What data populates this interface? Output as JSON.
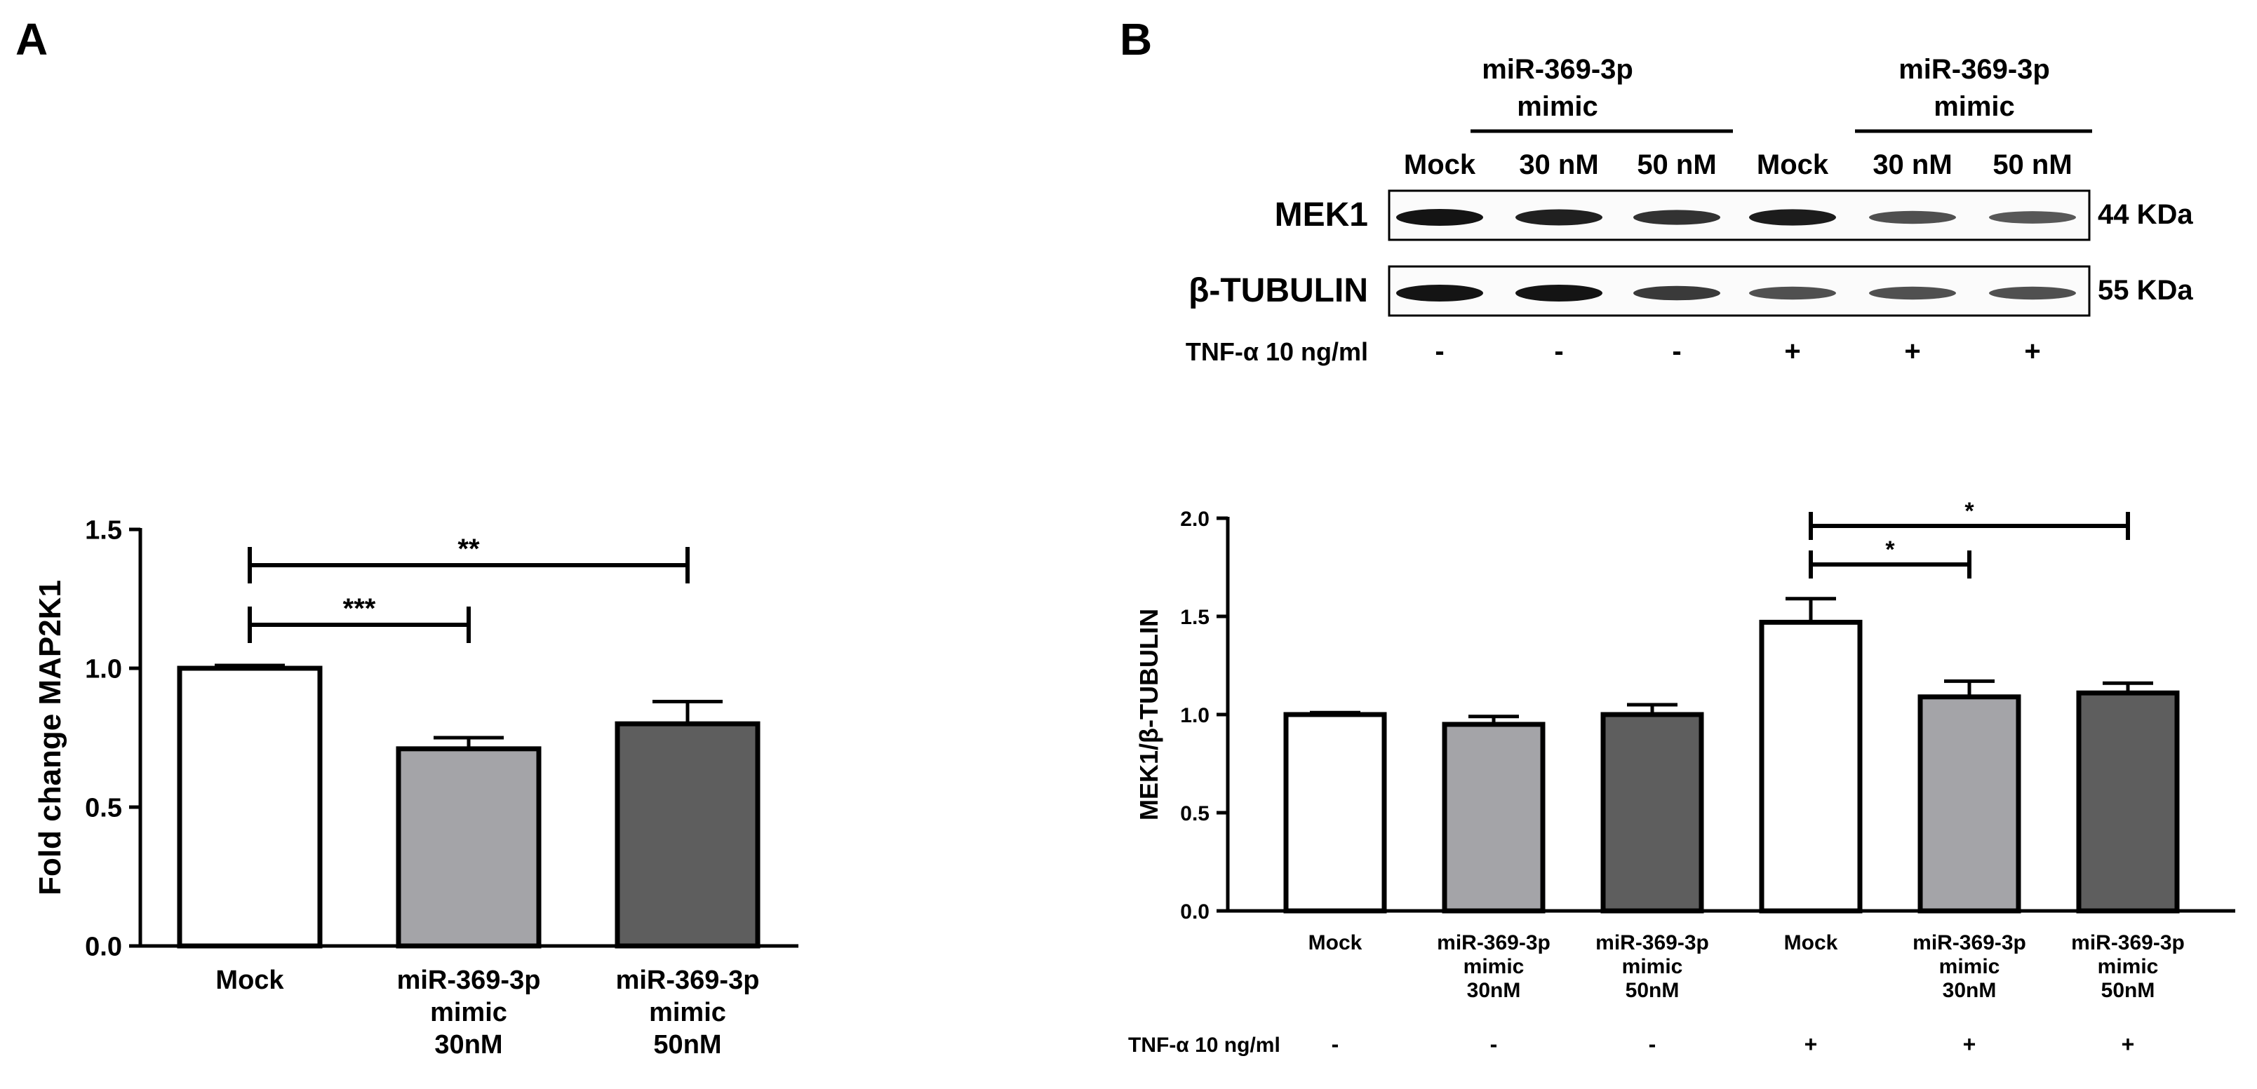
{
  "panels": {
    "a_label": "A",
    "b_label": "B"
  },
  "blot": {
    "group_label_line1": "miR-369-3p",
    "group_label_line2": "mimic",
    "lanes": [
      "Mock",
      "30 nM",
      "50 nM",
      "Mock",
      "30 nM",
      "50 nM"
    ],
    "rows": [
      {
        "label": "MEK1",
        "size": "44 KDa",
        "intensity": [
          1.0,
          0.92,
          0.8,
          0.95,
          0.6,
          0.55
        ]
      },
      {
        "label": "β-TUBULIN",
        "size": "55 KDa",
        "intensity": [
          1.0,
          1.0,
          0.75,
          0.6,
          0.6,
          0.6
        ]
      }
    ],
    "tnf_label": "TNF-α 10 ng/ml",
    "tnf_signs": [
      "-",
      "-",
      "-",
      "+",
      "+",
      "+"
    ]
  },
  "chart_data": [
    {
      "type": "bar",
      "panel": "A",
      "ylabel": "Fold change MAP2K1",
      "xlabel": "",
      "ylim": [
        0,
        1.5
      ],
      "yticks": [
        "0.0",
        "0.5",
        "1.0",
        "1.5"
      ],
      "ytick_values": [
        0,
        0.5,
        1.0,
        1.5
      ],
      "categories": [
        [
          "Mock"
        ],
        [
          "miR-369-3p",
          "mimic",
          "30nM"
        ],
        [
          "miR-369-3p",
          "mimic",
          "50nM"
        ]
      ],
      "values": [
        1.0,
        0.71,
        0.8
      ],
      "errors": [
        0.01,
        0.04,
        0.08
      ],
      "colors": [
        "#ffffff",
        "#a4a4a8",
        "#5e5e5e"
      ],
      "significance": [
        {
          "from": 0,
          "to": 1,
          "label": "***"
        },
        {
          "from": 0,
          "to": 2,
          "label": "**"
        }
      ]
    },
    {
      "type": "bar",
      "panel": "B",
      "ylabel": "MEK1/β-TUBULIN",
      "xlabel": "",
      "ylim": [
        0,
        2.0
      ],
      "yticks": [
        "0.0",
        "0.5",
        "1.0",
        "1.5",
        "2.0"
      ],
      "ytick_values": [
        0,
        0.5,
        1.0,
        1.5,
        2.0
      ],
      "categories": [
        [
          "Mock"
        ],
        [
          "miR-369-3p",
          "mimic",
          "30nM"
        ],
        [
          "miR-369-3p",
          "mimic",
          "50nM"
        ],
        [
          "Mock"
        ],
        [
          "miR-369-3p",
          "mimic",
          "30nM"
        ],
        [
          "miR-369-3p",
          "mimic",
          "50nM"
        ]
      ],
      "values": [
        1.0,
        0.95,
        1.0,
        1.47,
        1.09,
        1.11
      ],
      "errors": [
        0.01,
        0.04,
        0.05,
        0.12,
        0.08,
        0.05
      ],
      "colors": [
        "#ffffff",
        "#a4a4a8",
        "#5e5e5e",
        "#ffffff",
        "#a4a4a8",
        "#5e5e5e"
      ],
      "significance": [
        {
          "from": 3,
          "to": 4,
          "label": "*"
        },
        {
          "from": 3,
          "to": 5,
          "label": "*"
        }
      ],
      "tnf_label": "TNF-α 10 ng/ml",
      "tnf_signs": [
        "-",
        "-",
        "-",
        "+",
        "+",
        "+"
      ]
    }
  ]
}
